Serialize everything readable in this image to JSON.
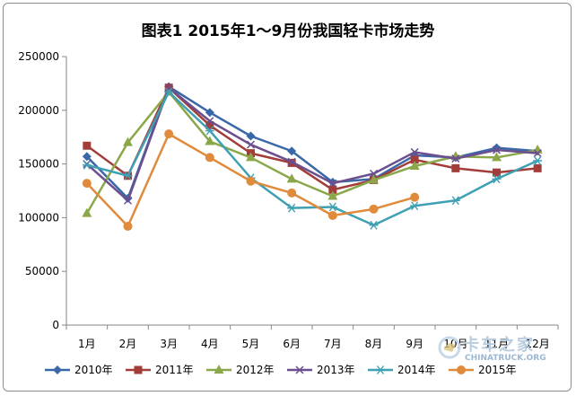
{
  "chart_data": {
    "type": "line",
    "title": "图表1  2015年1～9月份我国轻卡市场走势",
    "xlabel": "",
    "ylabel": "",
    "categories": [
      "1月",
      "2月",
      "3月",
      "4月",
      "5月",
      "6月",
      "7月",
      "8月",
      "9月",
      "10月",
      "11月",
      "12月"
    ],
    "ylim": [
      0,
      250000
    ],
    "yticks": [
      0,
      50000,
      100000,
      150000,
      200000,
      250000
    ],
    "grid": false,
    "legend": "bottom",
    "series": [
      {
        "name": "2010年",
        "color": "#3a67a8",
        "marker": "diamond",
        "values": [
          157000,
          118000,
          222000,
          198000,
          176000,
          162000,
          133000,
          136000,
          158000,
          156000,
          165000,
          162000
        ]
      },
      {
        "name": "2011年",
        "color": "#a33d3a",
        "marker": "square",
        "values": [
          167000,
          139000,
          221000,
          186000,
          160000,
          151000,
          126000,
          135000,
          154000,
          146000,
          142000,
          146000
        ]
      },
      {
        "name": "2012年",
        "color": "#8aa84a",
        "marker": "triangle",
        "values": [
          104000,
          170000,
          217000,
          171000,
          156000,
          136000,
          120000,
          135000,
          148000,
          157000,
          156000,
          163000
        ]
      },
      {
        "name": "2013年",
        "color": "#6b4f8e",
        "marker": "x",
        "values": [
          150000,
          116000,
          221000,
          190000,
          168000,
          152000,
          132000,
          141000,
          161000,
          155000,
          163000,
          160000
        ]
      },
      {
        "name": "2014年",
        "color": "#3fa0b4",
        "marker": "star",
        "values": [
          149000,
          139000,
          217000,
          181000,
          137000,
          109000,
          110000,
          93000,
          111000,
          116000,
          136000,
          153000
        ]
      },
      {
        "name": "2015年",
        "color": "#e08a3c",
        "marker": "circle",
        "values": [
          132000,
          92000,
          178000,
          156000,
          134000,
          123000,
          102000,
          108000,
          119000,
          null,
          null,
          null
        ]
      }
    ]
  },
  "watermark": {
    "cn": "卡车之家",
    "en": "CHINATRUCK.ORG"
  }
}
